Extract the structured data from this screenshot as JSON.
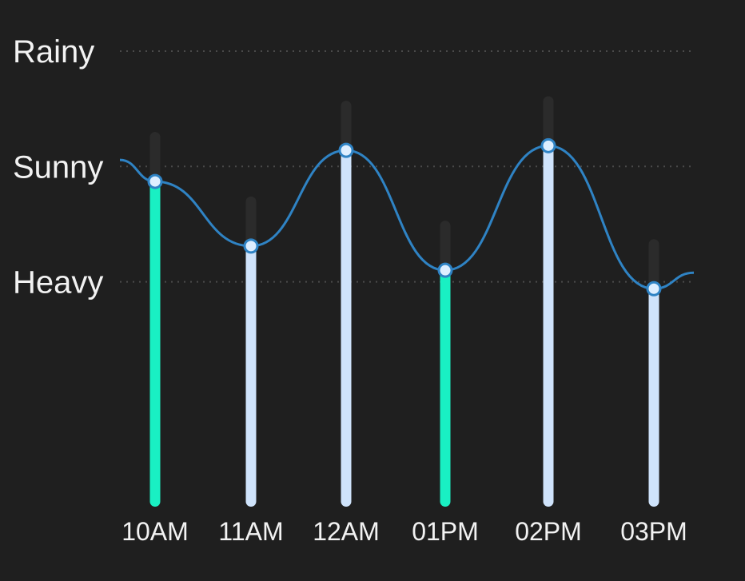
{
  "chart_data": {
    "type": "bar",
    "title": "",
    "categories": [
      "10AM",
      "11AM",
      "12AM",
      "01PM",
      "02PM",
      "03PM"
    ],
    "y_levels": [
      "Heavy",
      "Sunny",
      "Rainy"
    ],
    "values": [
      1.87,
      1.31,
      2.14,
      1.1,
      2.18,
      0.94
    ],
    "ylim": [
      -0.95,
      3.0
    ],
    "highlighted": [
      true,
      false,
      false,
      true,
      false,
      false
    ],
    "grid": "dotted horizontal at Heavy, Sunny, Rainy",
    "legend": "none",
    "colors": {
      "background": "#1f1f1f",
      "highlight_bar": "#19f0c3",
      "default_bar": "#cfe3fb",
      "track": "#2b2b2b",
      "curve": "#2f83c4",
      "marker_fill": "#ddeeff",
      "marker_stroke": "#2f83c4",
      "grid": "#4a4a4a",
      "text": "#f2f2f2"
    }
  }
}
